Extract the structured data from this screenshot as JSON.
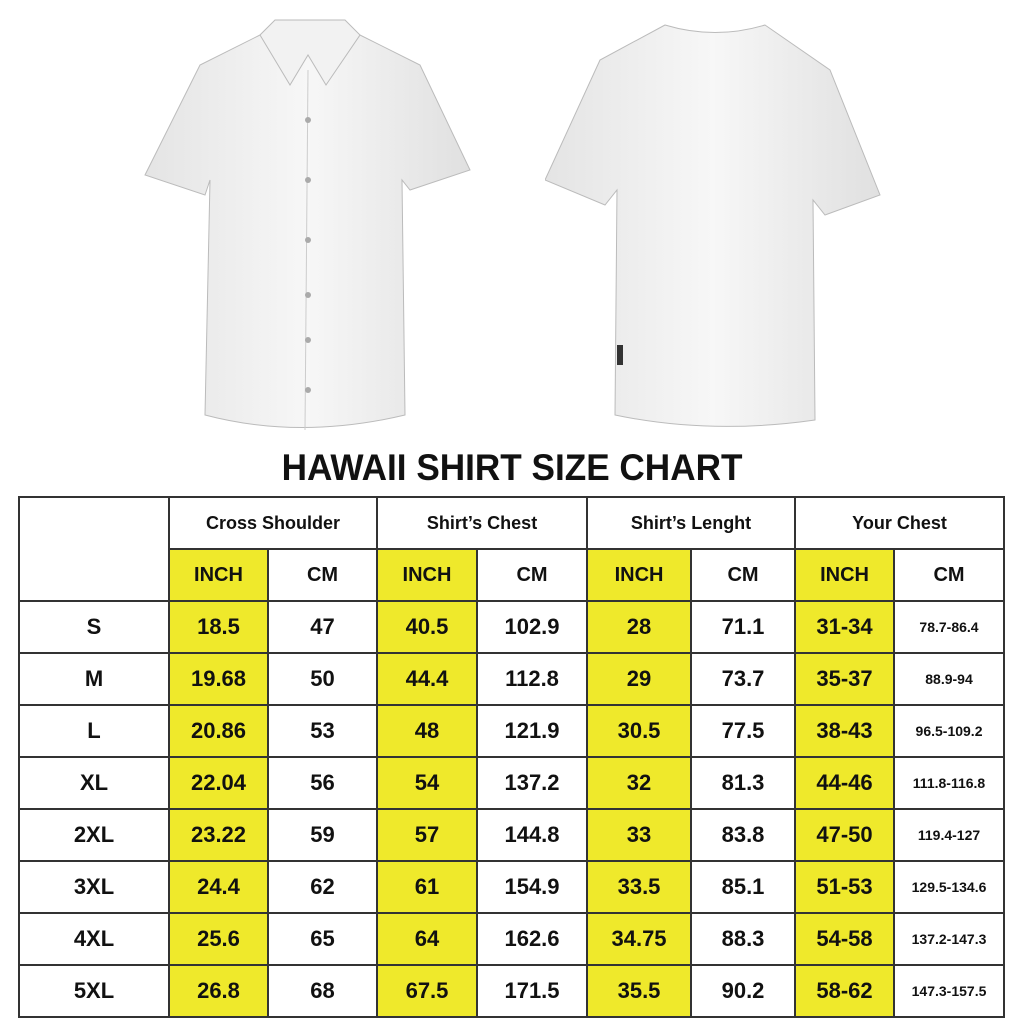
{
  "title": "HAWAII SHIRT SIZE CHART",
  "highlight_color": "#efe92b",
  "images": {
    "front": "shirt-front",
    "back": "shirt-back"
  },
  "groups": [
    "Cross Shoulder",
    "Shirt’s Chest",
    "Shirt’s Lenght",
    "Your Chest"
  ],
  "units": [
    "INCH",
    "CM",
    "INCH",
    "CM",
    "INCH",
    "CM",
    "INCH",
    "CM"
  ],
  "rows": [
    {
      "size": "S",
      "values": [
        "18.5",
        "47",
        "40.5",
        "102.9",
        "28",
        "71.1",
        "31-34",
        "78.7-86.4"
      ]
    },
    {
      "size": "M",
      "values": [
        "19.68",
        "50",
        "44.4",
        "112.8",
        "29",
        "73.7",
        "35-37",
        "88.9-94"
      ]
    },
    {
      "size": "L",
      "values": [
        "20.86",
        "53",
        "48",
        "121.9",
        "30.5",
        "77.5",
        "38-43",
        "96.5-109.2"
      ]
    },
    {
      "size": "XL",
      "values": [
        "22.04",
        "56",
        "54",
        "137.2",
        "32",
        "81.3",
        "44-46",
        "111.8-116.8"
      ]
    },
    {
      "size": "2XL",
      "values": [
        "23.22",
        "59",
        "57",
        "144.8",
        "33",
        "83.8",
        "47-50",
        "119.4-127"
      ]
    },
    {
      "size": "3XL",
      "values": [
        "24.4",
        "62",
        "61",
        "154.9",
        "33.5",
        "85.1",
        "51-53",
        "129.5-134.6"
      ]
    },
    {
      "size": "4XL",
      "values": [
        "25.6",
        "65",
        "64",
        "162.6",
        "34.75",
        "88.3",
        "54-58",
        "137.2-147.3"
      ]
    },
    {
      "size": "5XL",
      "values": [
        "26.8",
        "68",
        "67.5",
        "171.5",
        "35.5",
        "90.2",
        "58-62",
        "147.3-157.5"
      ]
    }
  ]
}
